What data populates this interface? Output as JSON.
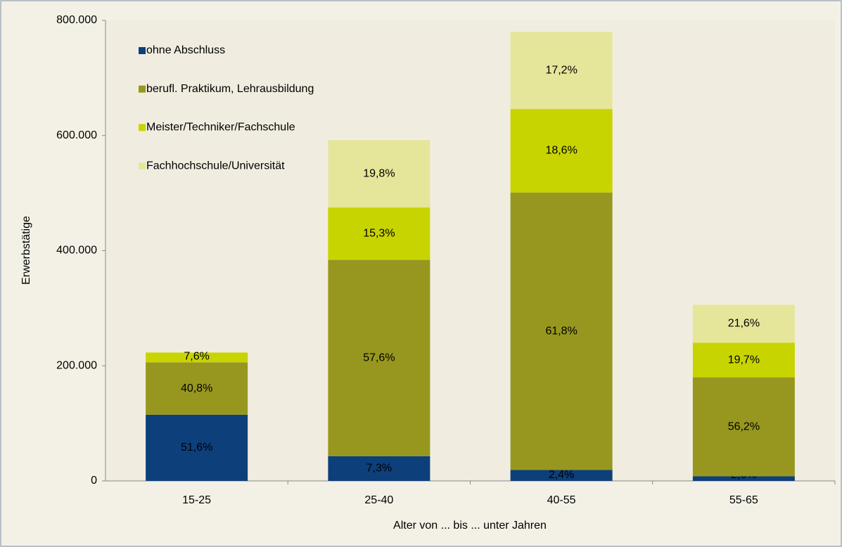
{
  "chart_data": {
    "type": "stacked_bar",
    "y_label": "Erwerbstätige",
    "x_label": "Alter von ... bis ... unter Jahren",
    "categories": [
      "15-25",
      "25-40",
      "40-55",
      "55-65"
    ],
    "series": [
      {
        "name": "ohne Abschluss",
        "color": "#0d3f7a",
        "values": [
          115000,
          43000,
          19000,
          8000
        ],
        "value_labels": [
          "51,6%",
          "7,3%",
          "2,4%",
          "2,6%"
        ]
      },
      {
        "name": "berufl. Praktikum, Lehrausbildung",
        "color": "#97971f",
        "values": [
          91000,
          341000,
          482000,
          172000
        ],
        "value_labels": [
          "40,8%",
          "57,6%",
          "61,8%",
          "56,2%"
        ]
      },
      {
        "name": "Meister/Techniker/Fachschule",
        "color": "#c8d400",
        "values": [
          17000,
          91000,
          145000,
          60000
        ],
        "value_labels": [
          "7,6%",
          "15,3%",
          "18,6%",
          "19,7%"
        ]
      },
      {
        "name": "Fachhochschule/Universität",
        "color": "#e6e69a",
        "values": [
          0,
          117000,
          134000,
          66000
        ],
        "value_labels": [
          "",
          "19,8%",
          "17,2%",
          "21,6%"
        ]
      }
    ],
    "ylim": [
      0,
      800000
    ],
    "yticks": [
      0,
      {
        "value": 200000,
        "label": "200.000"
      },
      {
        "value": 400000,
        "label": "400.000"
      },
      {
        "value": 600000,
        "label": "600.000"
      },
      {
        "value": 800000,
        "label": "800.000"
      }
    ],
    "legend": "top-left"
  }
}
